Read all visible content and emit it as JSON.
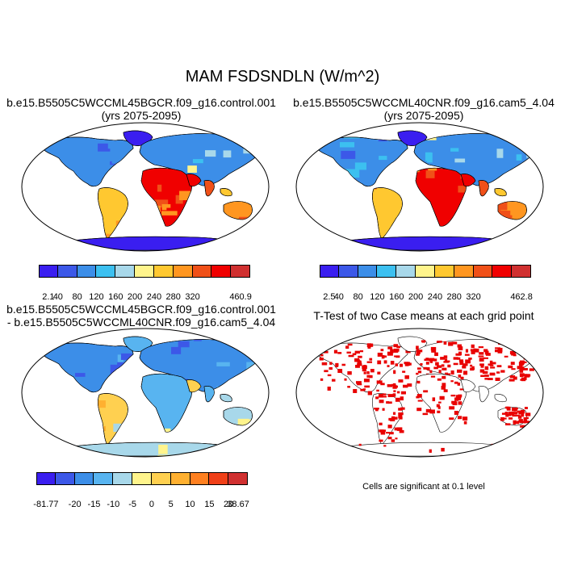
{
  "figure": {
    "title": "MAM FSDSNDLN (W/m^2)"
  },
  "panels": [
    {
      "id": "control",
      "title_line1": "b.e15.B5505C5WCCML45BGCR.f09_g16.control.001",
      "title_line2": "(yrs 2075-2095)",
      "type": "field",
      "colorbar": {
        "colors": [
          "#3a1ef0",
          "#3c58e8",
          "#3c8ee8",
          "#3cc0f0",
          "#a8d8ea",
          "#fff48c",
          "#ffc830",
          "#ff9620",
          "#f05018",
          "#f00000",
          "#d03030"
        ],
        "labels": [
          "2.1",
          "40",
          "80",
          "120",
          "160",
          "200",
          "240",
          "280",
          "320",
          "460.9"
        ]
      }
    },
    {
      "id": "cam5",
      "title_line1": "b.e15.B5505C5WCCML40CNR.f09_g16.cam5_4.04",
      "title_line2": "(yrs 2075-2095)",
      "type": "field",
      "colorbar": {
        "colors": [
          "#3a1ef0",
          "#3c58e8",
          "#3c8ee8",
          "#3cc0f0",
          "#a8d8ea",
          "#fff48c",
          "#ffc830",
          "#ff9620",
          "#f05018",
          "#f00000",
          "#d03030"
        ],
        "labels": [
          "2.5",
          "40",
          "80",
          "120",
          "160",
          "200",
          "240",
          "280",
          "320",
          "462.8"
        ]
      }
    },
    {
      "id": "difference",
      "title_line1": "b.e15.B5505C5WCCML45BGCR.f09_g16.control.001",
      "title_line2": "- b.e15.B5505C5WCCML40CNR.f09_g16.cam5_4.04",
      "type": "difference",
      "colorbar": {
        "colors": [
          "#3a1ef0",
          "#3c58e8",
          "#3c8ee8",
          "#58b4f0",
          "#a8d8ea",
          "#fff48c",
          "#ffd050",
          "#ffb030",
          "#ff8020",
          "#f04018",
          "#d03030"
        ],
        "labels": [
          "-81.77",
          "-20",
          "-15",
          "-10",
          "-5",
          "0",
          "5",
          "10",
          "15",
          "20",
          "38.67"
        ]
      }
    },
    {
      "id": "ttest",
      "title_line1": "T-Test of two Case means at each grid point",
      "type": "significance",
      "note": "Cells are significant at 0.1 level",
      "sig_color": "#e80000"
    }
  ]
}
